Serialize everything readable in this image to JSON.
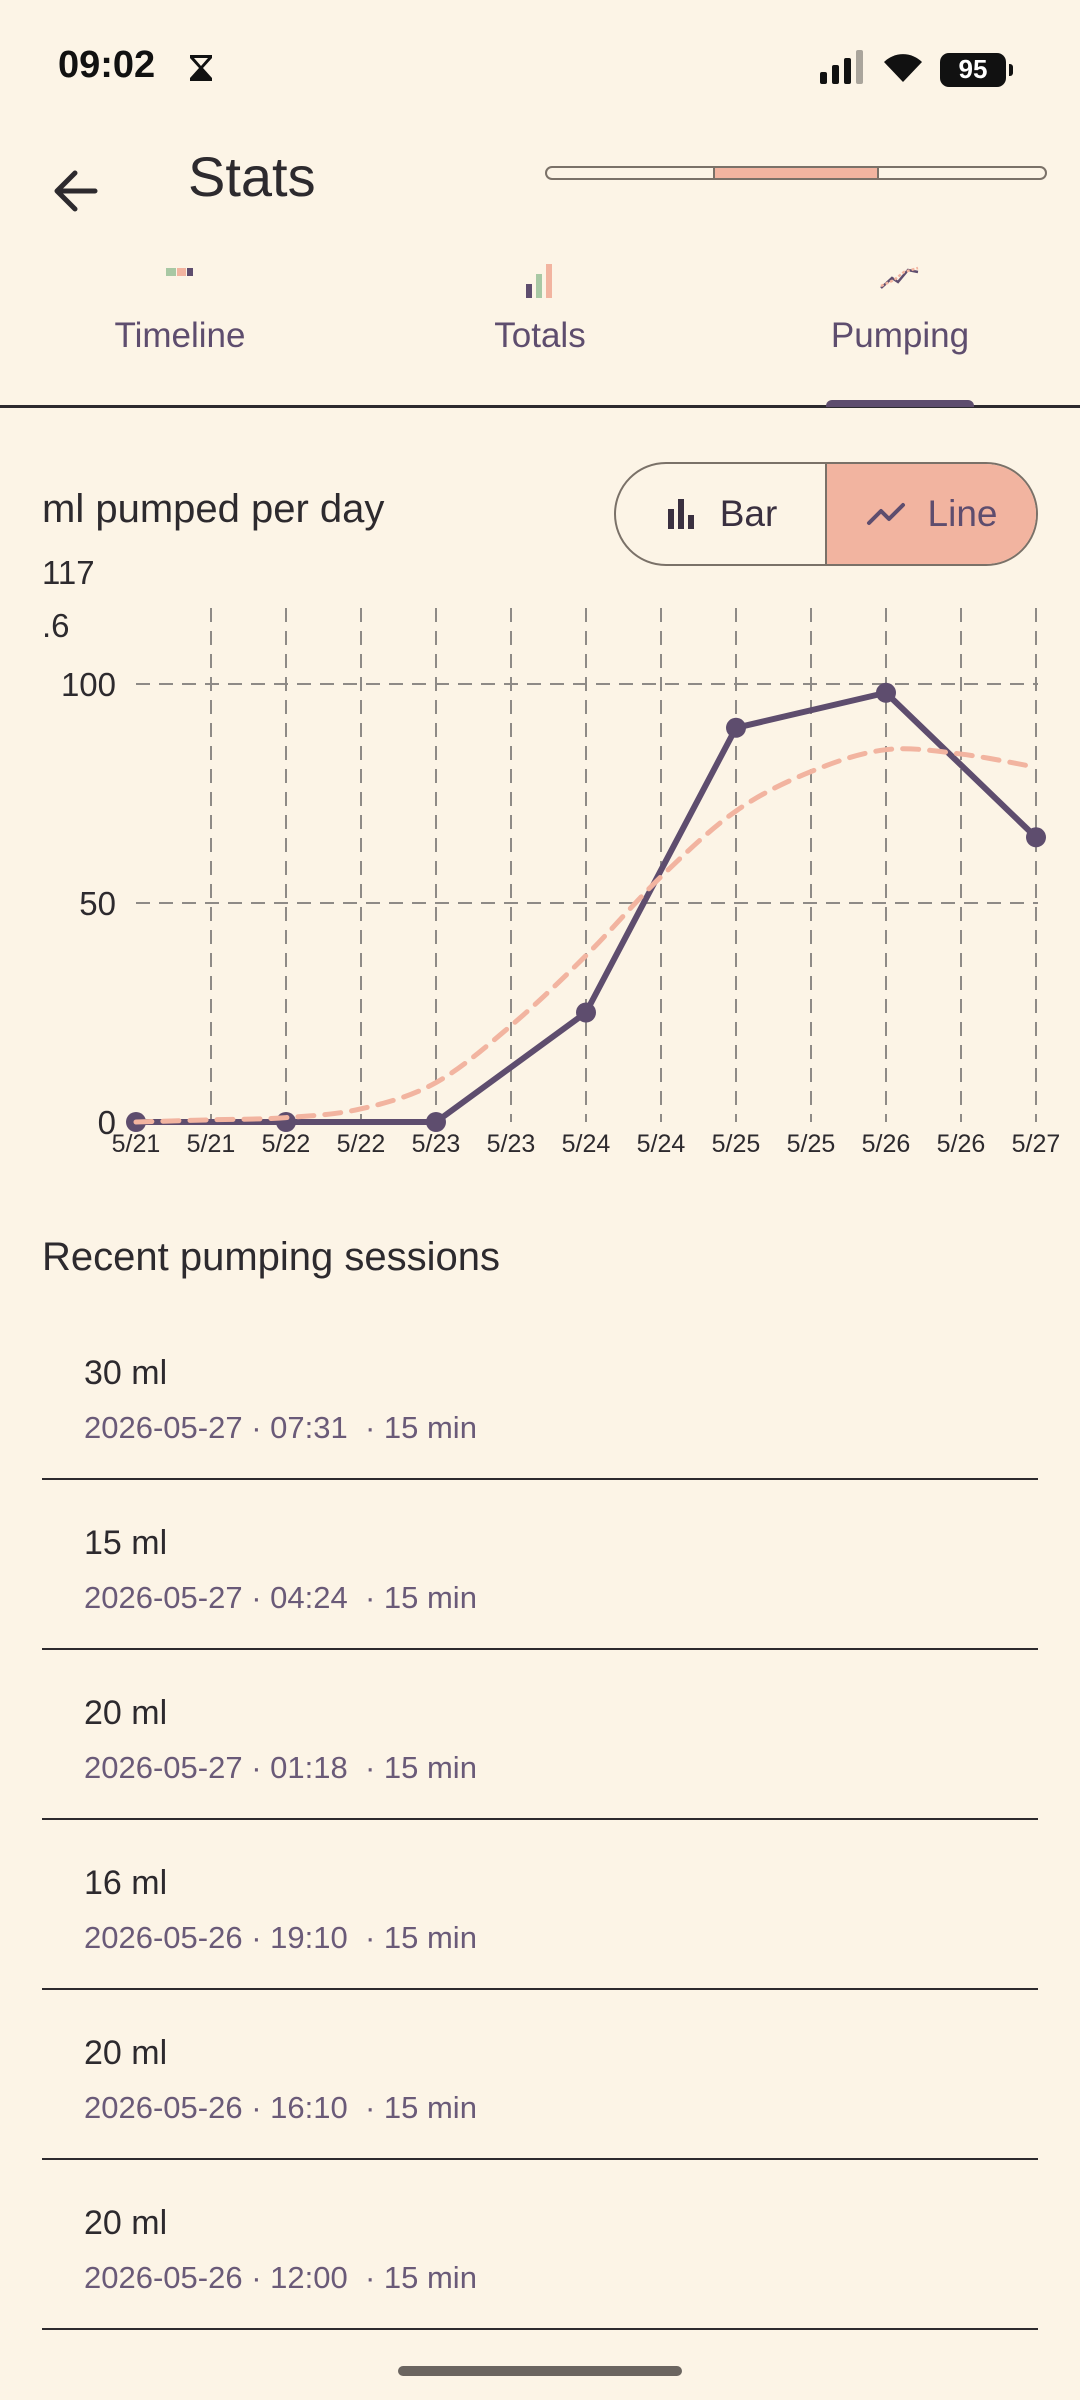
{
  "status": {
    "time": "09:02",
    "battery": "95"
  },
  "header": {
    "title": "Stats",
    "progress": {
      "start": 0.3333,
      "end": 0.6667
    }
  },
  "tabs": [
    {
      "label": "Timeline",
      "active": false,
      "icon": "timeline-icon"
    },
    {
      "label": "Totals",
      "active": false,
      "icon": "totals-chart-icon"
    },
    {
      "label": "Pumping",
      "active": true,
      "icon": "pumping-line-icon"
    }
  ],
  "chart_section": {
    "title": "ml pumped per day",
    "toggle": {
      "bar_label": "Bar",
      "line_label": "Line",
      "selected": "Line"
    }
  },
  "chart_data": {
    "type": "line",
    "title": "ml pumped per day",
    "max_label": [
      "117",
      ".6"
    ],
    "y_ticks": [
      "100",
      "50",
      "0"
    ],
    "ylim": [
      0,
      117.6
    ],
    "x_tick_labels": [
      "5/21",
      "5/21",
      "5/22",
      "5/22",
      "5/23",
      "5/23",
      "5/24",
      "5/24",
      "5/25",
      "5/25",
      "5/26",
      "5/26",
      "5/27"
    ],
    "series": [
      {
        "style": "solid",
        "color": "#5e4d6e",
        "points": [
          {
            "x": "5/21",
            "y": 0
          },
          {
            "x": "5/22",
            "y": 0
          },
          {
            "x": "5/23",
            "y": 0
          },
          {
            "x": "5/24",
            "y": 25
          },
          {
            "x": "5/25",
            "y": 90
          },
          {
            "x": "5/26",
            "y": 98
          },
          {
            "x": "5/27",
            "y": 65
          }
        ]
      },
      {
        "style": "dashed",
        "color": "#f2b4a0",
        "points": [
          {
            "x": "5/21",
            "y": 0
          },
          {
            "x": "5/21.5",
            "y": 0.5
          },
          {
            "x": "5/22",
            "y": 1
          },
          {
            "x": "5/22.5",
            "y": 3
          },
          {
            "x": "5/23",
            "y": 9
          },
          {
            "x": "5/23.5",
            "y": 22
          },
          {
            "x": "5/24",
            "y": 38
          },
          {
            "x": "5/24.5",
            "y": 56
          },
          {
            "x": "5/25",
            "y": 71
          },
          {
            "x": "5/25.5",
            "y": 80
          },
          {
            "x": "5/26",
            "y": 85
          },
          {
            "x": "5/26.5",
            "y": 84
          },
          {
            "x": "5/27",
            "y": 81
          }
        ]
      }
    ],
    "grid": true
  },
  "sessions": {
    "title": "Recent pumping sessions",
    "items": [
      {
        "amount": "30 ml",
        "date": "2026-05-27",
        "time": "07:31",
        "duration": "15 min"
      },
      {
        "amount": "15 ml",
        "date": "2026-05-27",
        "time": "04:24",
        "duration": "15 min"
      },
      {
        "amount": "20 ml",
        "date": "2026-05-27",
        "time": "01:18",
        "duration": "15 min"
      },
      {
        "amount": "16 ml",
        "date": "2026-05-26",
        "time": "19:10",
        "duration": "15 min"
      },
      {
        "amount": "20 ml",
        "date": "2026-05-26",
        "time": "16:10",
        "duration": "15 min"
      },
      {
        "amount": "20 ml",
        "date": "2026-05-26",
        "time": "12:00",
        "duration": "15 min"
      }
    ]
  }
}
